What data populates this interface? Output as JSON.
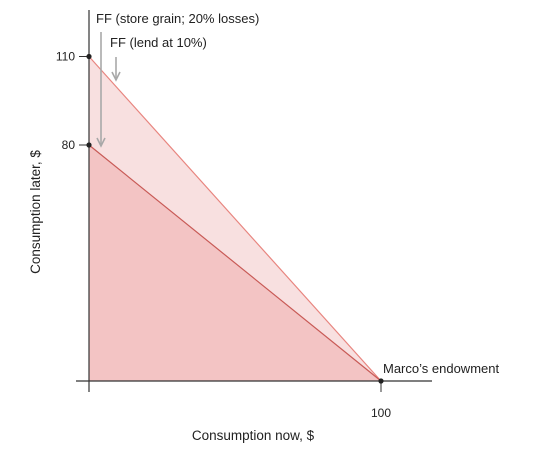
{
  "chart_data": {
    "type": "area",
    "xlabel": "Consumption now, $",
    "ylabel": "Consumption later, $",
    "xlim": [
      0,
      115
    ],
    "ylim": [
      0,
      120
    ],
    "x_ticks": [
      {
        "value": 100,
        "label": "100"
      }
    ],
    "y_ticks": [
      {
        "value": 80,
        "label": "80"
      },
      {
        "value": 110,
        "label": "110"
      }
    ],
    "series": [
      {
        "name": "FF (lend at 10%)",
        "points": [
          [
            0,
            110
          ],
          [
            100,
            0
          ]
        ],
        "fill": "#f8e0e0",
        "line": "#e8857f"
      },
      {
        "name": "FF (store grain; 20% losses)",
        "points": [
          [
            0,
            80
          ],
          [
            100,
            0
          ]
        ],
        "fill": "#f3c4c4",
        "line": "#c85a56"
      }
    ],
    "annotations": [
      {
        "text": "Marco’s endowment",
        "x": 100,
        "y": 0
      }
    ],
    "arrow_color": "#a8a8a8",
    "axis_color": "#333333"
  }
}
